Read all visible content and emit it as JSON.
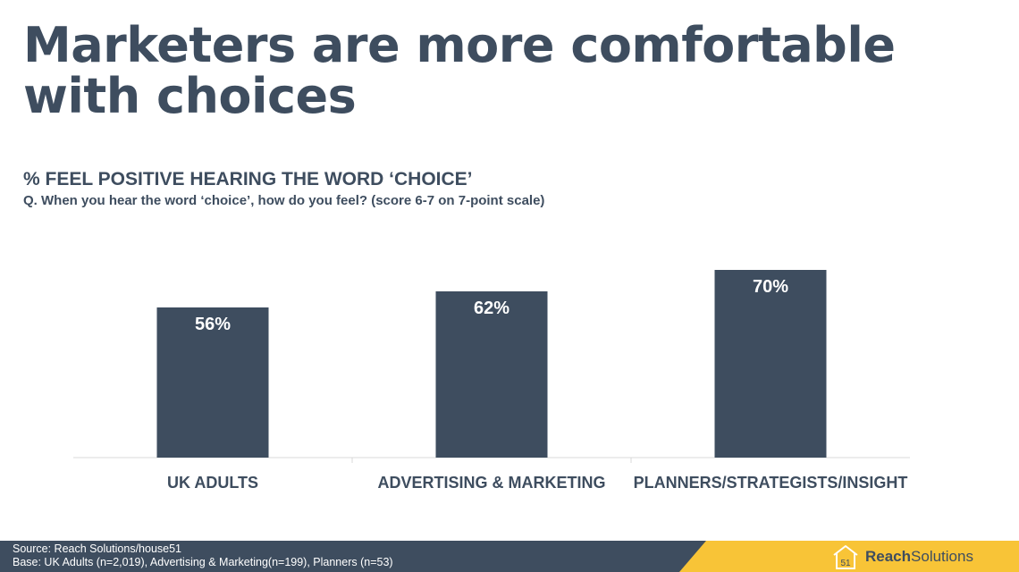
{
  "slide": {
    "title_line1": "Marketers are more comfortable",
    "title_line2": "with choices",
    "subtitle": "% FEEL POSITIVE HEARING THE WORD ‘CHOICE’",
    "question": "Q. When you hear the word ‘choice’, how do you feel? (score 6-7 on 7-point scale)"
  },
  "chart_data": {
    "type": "bar",
    "title": "% FEEL POSITIVE HEARING THE WORD ‘CHOICE’",
    "xlabel": "",
    "ylabel": "",
    "categories": [
      "UK ADULTS",
      "ADVERTISING & MARKETING",
      "PLANNERS/STRATEGISTS/INSIGHT"
    ],
    "values": [
      56,
      62,
      70
    ],
    "value_labels": [
      "56%",
      "62%",
      "70%"
    ],
    "ylim": [
      0,
      100
    ],
    "grid": false,
    "legend": "none",
    "bar_color": "#3e4d5f"
  },
  "footer": {
    "source": "Source: Reach Solutions/house51",
    "base": "Base: UK Adults (n=2,019), Advertising & Marketing(n=199), Planners (n=53)"
  },
  "brand": {
    "logo_number": "51",
    "name_bold": "Reach",
    "name_regular": "Solutions",
    "icon": "house-icon",
    "accent": "#f8c437",
    "dark": "#3e4d5f"
  }
}
